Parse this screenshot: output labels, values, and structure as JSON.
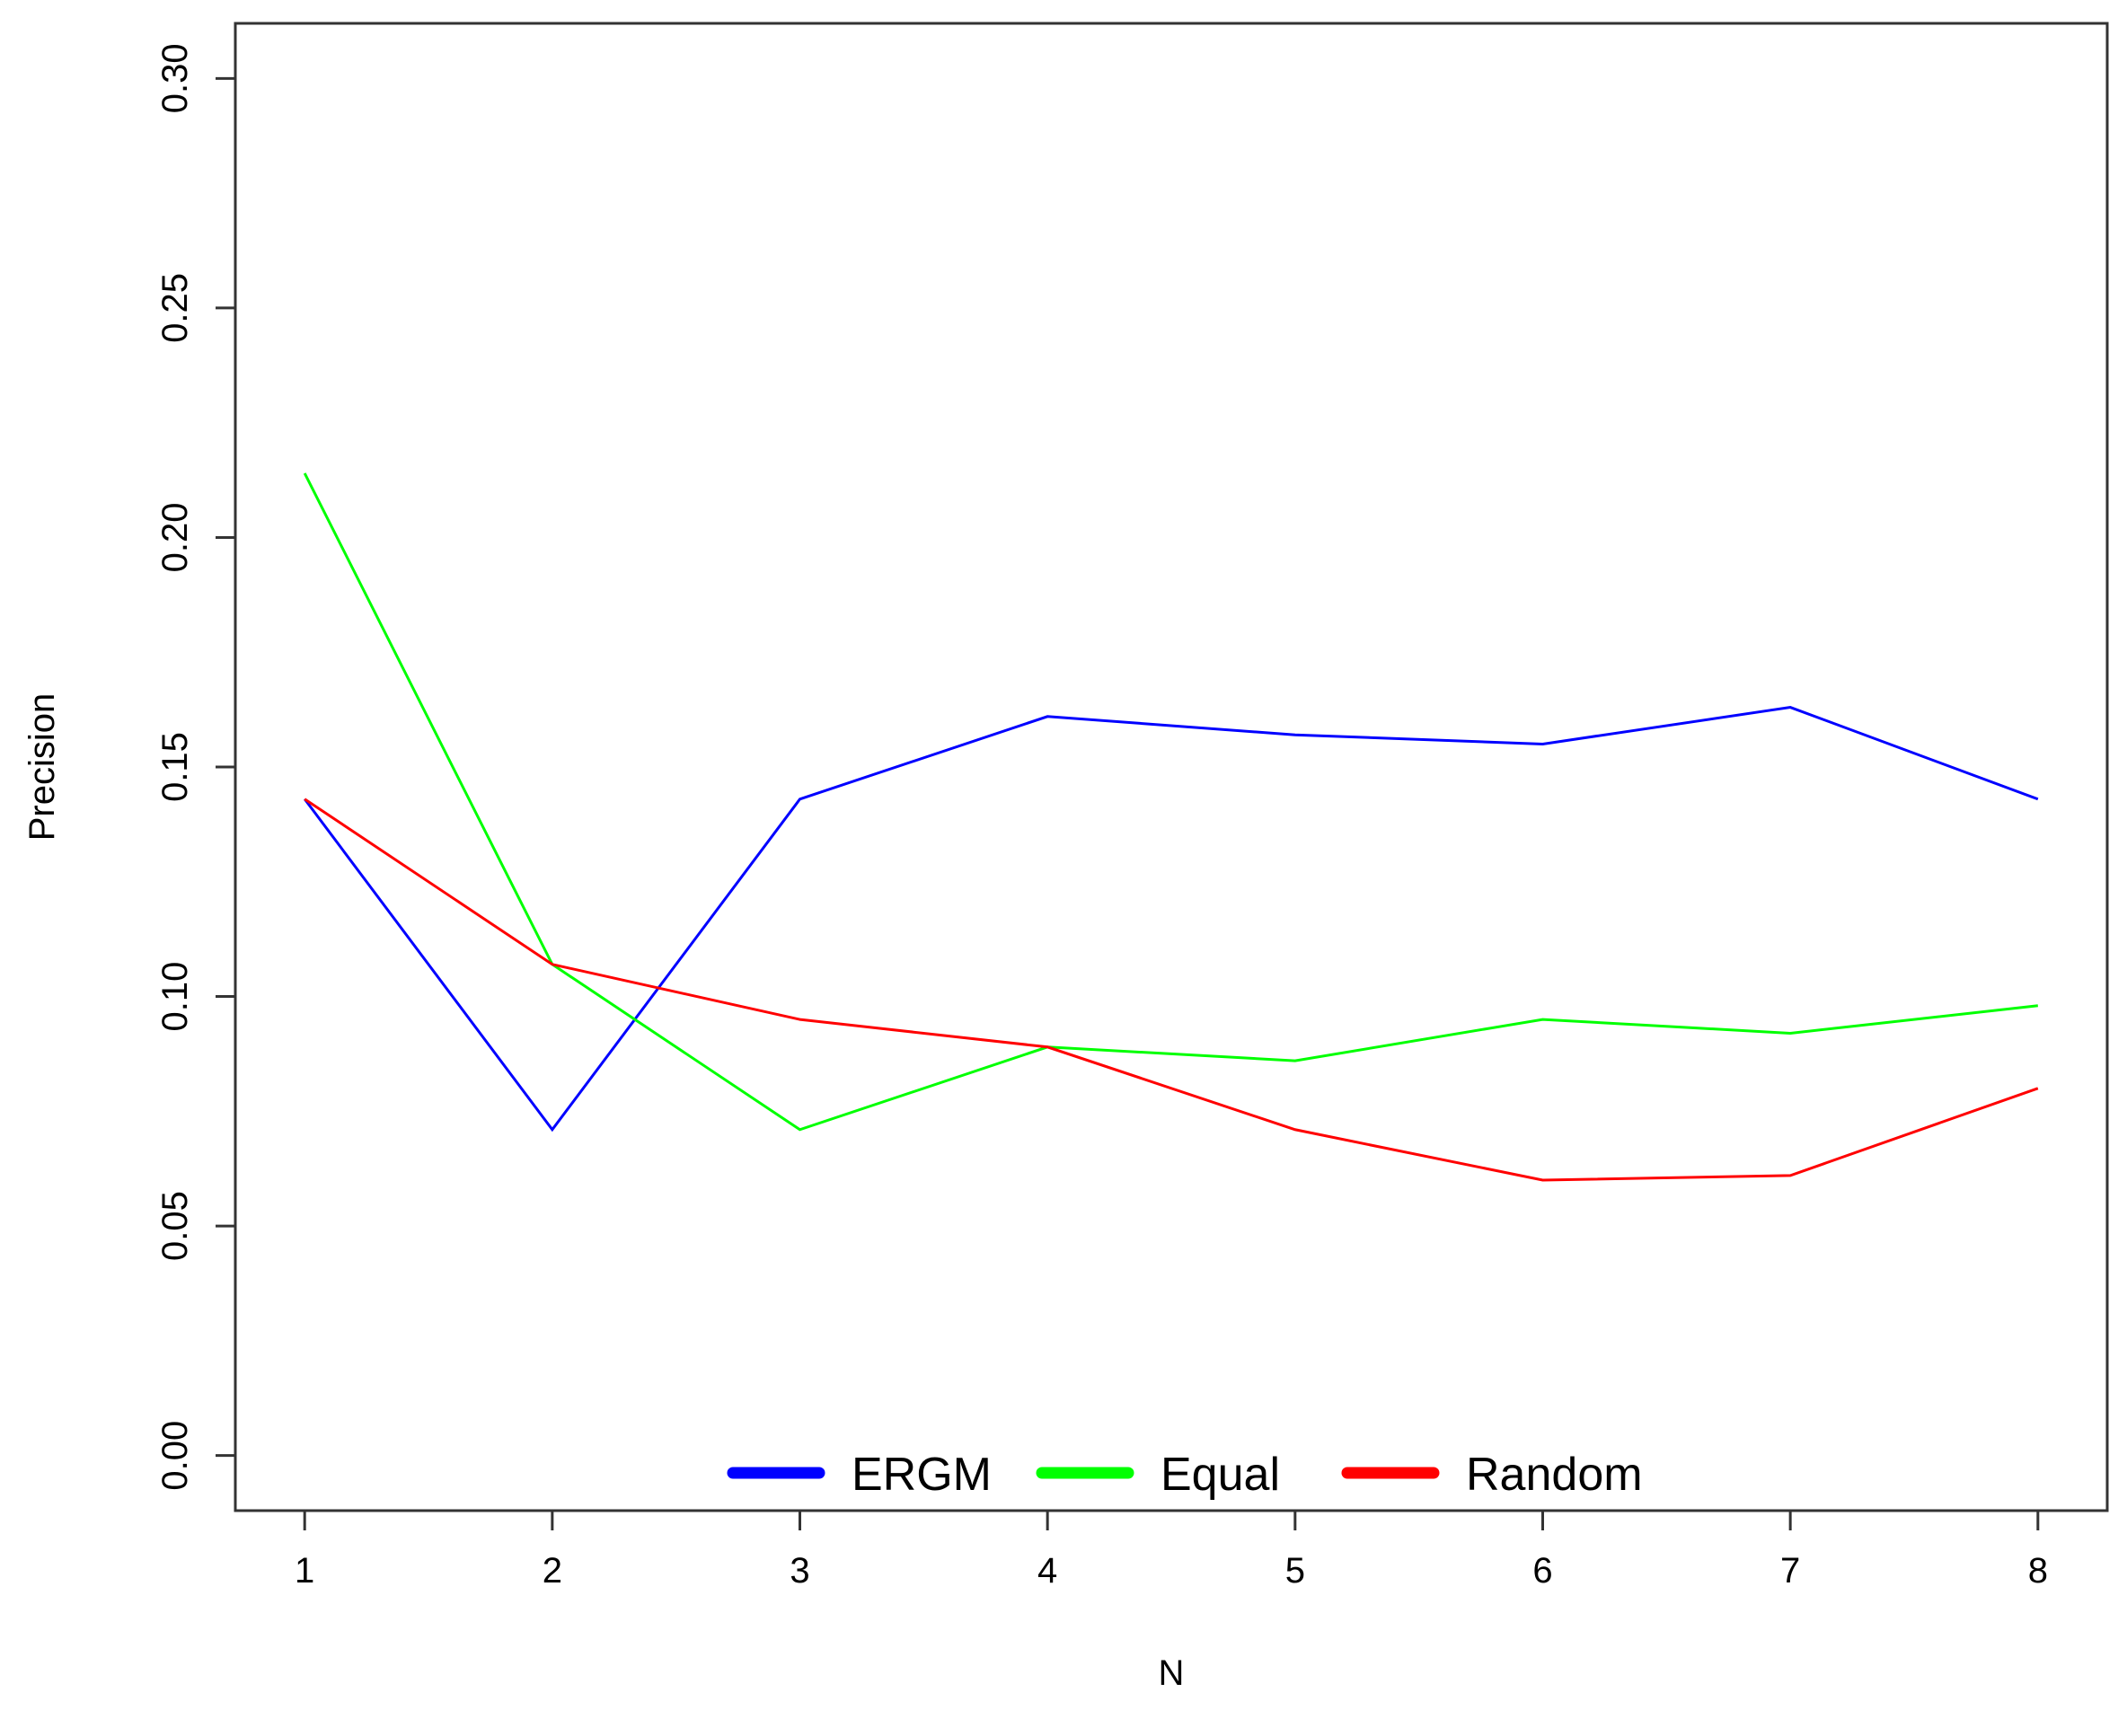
{
  "chart_data": {
    "type": "line",
    "title": "",
    "xlabel": "N",
    "ylabel": "Precision",
    "x": [
      1,
      2,
      3,
      4,
      5,
      6,
      7,
      8
    ],
    "xlim": [
      0.72,
      8.28
    ],
    "ylim": [
      -0.012,
      0.312
    ],
    "xticks": [
      1,
      2,
      3,
      4,
      5,
      6,
      7,
      8
    ],
    "yticks": [
      0.0,
      0.05,
      0.1,
      0.15,
      0.2,
      0.25,
      0.3
    ],
    "ytick_labels": [
      "0.00",
      "0.05",
      "0.10",
      "0.15",
      "0.20",
      "0.25",
      "0.30"
    ],
    "grid": false,
    "legend_position": "bottom-center",
    "series": [
      {
        "name": "ERGM",
        "color": "#0000ff",
        "values": [
          0.143,
          0.071,
          0.143,
          0.161,
          0.157,
          0.155,
          0.163,
          0.143
        ]
      },
      {
        "name": "Equal",
        "color": "#00ff00",
        "values": [
          0.214,
          0.107,
          0.071,
          0.089,
          0.086,
          0.095,
          0.092,
          0.098
        ]
      },
      {
        "name": "Random",
        "color": "#ff0000",
        "values": [
          0.143,
          0.107,
          0.095,
          0.089,
          0.071,
          0.06,
          0.061,
          0.08
        ]
      }
    ]
  }
}
